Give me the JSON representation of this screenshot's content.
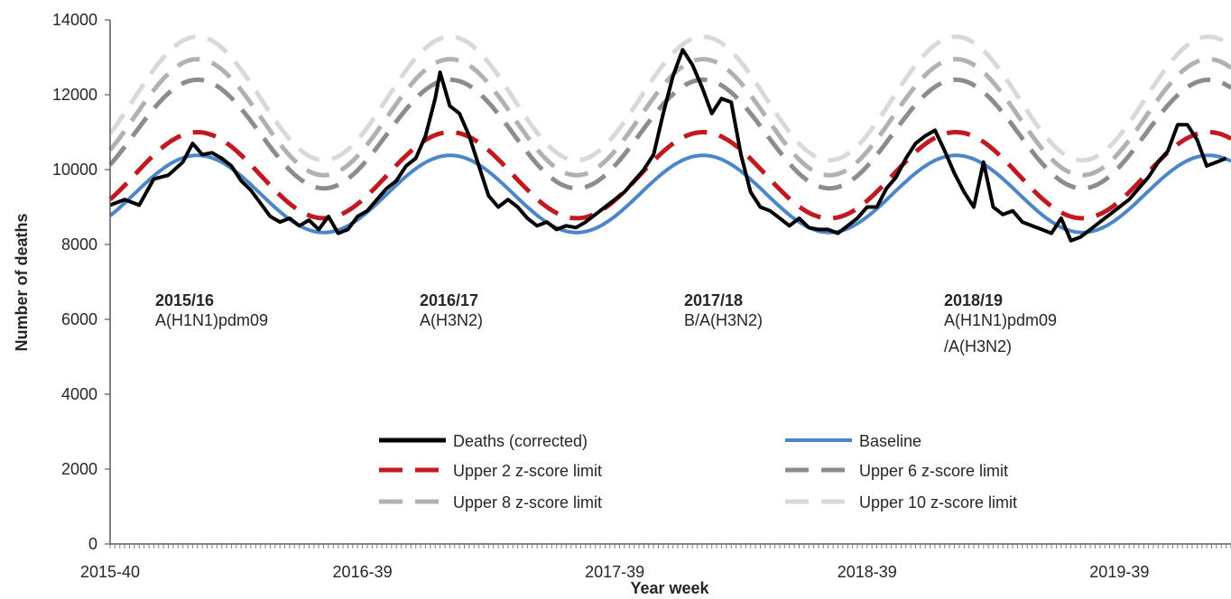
{
  "chart_data": {
    "type": "line",
    "xlabel": "Year week",
    "ylabel": "Number of deaths",
    "ylim": [
      0,
      14000
    ],
    "yticks": [
      0,
      2000,
      4000,
      6000,
      8000,
      10000,
      12000,
      14000
    ],
    "x_range": [
      "2015-40",
      "2020-10"
    ],
    "x_tick_labels": [
      "2015-40",
      "2016-39",
      "2017-39",
      "2018-39",
      "2019-39"
    ],
    "grid": false,
    "legend_position": "bottom-center",
    "seasons": [
      {
        "season": "2015/16",
        "strain": [
          "A(H1N1)pdm09"
        ]
      },
      {
        "season": "2016/17",
        "strain": [
          "A(H3N2)"
        ]
      },
      {
        "season": "2017/18",
        "strain": [
          "B/A(H3N2)"
        ]
      },
      {
        "season": "2018/19",
        "strain": [
          "A(H1N1)pdm09",
          "/A(H3N2)"
        ]
      }
    ],
    "series": [
      {
        "name": "Deaths (corrected)",
        "color": "#000000",
        "points": [
          [
            "2015-40",
            9050
          ],
          [
            "2015-43",
            9200
          ],
          [
            "2015-46",
            9050
          ],
          [
            "2015-49",
            9750
          ],
          [
            "2015-52",
            9850
          ],
          [
            "2016-02",
            10200
          ],
          [
            "2016-04",
            10700
          ],
          [
            "2016-06",
            10400
          ],
          [
            "2016-08",
            10450
          ],
          [
            "2016-10",
            10300
          ],
          [
            "2016-12",
            10100
          ],
          [
            "2016-14",
            9700
          ],
          [
            "2016-16",
            9450
          ],
          [
            "2016-18",
            9100
          ],
          [
            "2016-20",
            8750
          ],
          [
            "2016-22",
            8600
          ],
          [
            "2016-24",
            8700
          ],
          [
            "2016-26",
            8500
          ],
          [
            "2016-28",
            8650
          ],
          [
            "2016-30",
            8400
          ],
          [
            "2016-32",
            8750
          ],
          [
            "2016-34",
            8300
          ],
          [
            "2016-36",
            8400
          ],
          [
            "2016-38",
            8750
          ],
          [
            "2016-40",
            8900
          ],
          [
            "2016-42",
            9200
          ],
          [
            "2016-44",
            9500
          ],
          [
            "2016-46",
            9700
          ],
          [
            "2016-48",
            10100
          ],
          [
            "2016-50",
            10300
          ],
          [
            "2016-52",
            10900
          ],
          [
            "2017-02",
            11900
          ],
          [
            "2017-03",
            12600
          ],
          [
            "2017-05",
            11700
          ],
          [
            "2017-07",
            11500
          ],
          [
            "2017-09",
            10900
          ],
          [
            "2017-11",
            10100
          ],
          [
            "2017-13",
            9300
          ],
          [
            "2017-15",
            9000
          ],
          [
            "2017-17",
            9200
          ],
          [
            "2017-19",
            9000
          ],
          [
            "2017-21",
            8700
          ],
          [
            "2017-23",
            8500
          ],
          [
            "2017-25",
            8600
          ],
          [
            "2017-27",
            8400
          ],
          [
            "2017-29",
            8500
          ],
          [
            "2017-31",
            8450
          ],
          [
            "2017-33",
            8600
          ],
          [
            "2017-35",
            8800
          ],
          [
            "2017-37",
            9000
          ],
          [
            "2017-39",
            9200
          ],
          [
            "2017-41",
            9400
          ],
          [
            "2017-43",
            9700
          ],
          [
            "2017-45",
            10000
          ],
          [
            "2017-47",
            10400
          ],
          [
            "2017-49",
            11500
          ],
          [
            "2017-51",
            12500
          ],
          [
            "2018-01",
            13200
          ],
          [
            "2018-03",
            12800
          ],
          [
            "2018-05",
            12200
          ],
          [
            "2018-07",
            11500
          ],
          [
            "2018-09",
            11900
          ],
          [
            "2018-11",
            11800
          ],
          [
            "2018-13",
            10400
          ],
          [
            "2018-15",
            9400
          ],
          [
            "2018-17",
            9000
          ],
          [
            "2018-19",
            8900
          ],
          [
            "2018-21",
            8700
          ],
          [
            "2018-23",
            8500
          ],
          [
            "2018-25",
            8700
          ],
          [
            "2018-27",
            8450
          ],
          [
            "2018-29",
            8400
          ],
          [
            "2018-31",
            8400
          ],
          [
            "2018-33",
            8300
          ],
          [
            "2018-35",
            8500
          ],
          [
            "2018-37",
            8700
          ],
          [
            "2018-39",
            9000
          ],
          [
            "2018-41",
            9000
          ],
          [
            "2018-43",
            9500
          ],
          [
            "2018-45",
            9800
          ],
          [
            "2018-47",
            10300
          ],
          [
            "2018-49",
            10700
          ],
          [
            "2018-51",
            10900
          ],
          [
            "2019-01",
            11050
          ],
          [
            "2019-03",
            10500
          ],
          [
            "2019-05",
            9900
          ],
          [
            "2019-07",
            9400
          ],
          [
            "2019-09",
            9000
          ],
          [
            "2019-11",
            10200
          ],
          [
            "2019-13",
            9000
          ],
          [
            "2019-15",
            8800
          ],
          [
            "2019-17",
            8900
          ],
          [
            "2019-19",
            8600
          ],
          [
            "2019-21",
            8500
          ],
          [
            "2019-23",
            8400
          ],
          [
            "2019-25",
            8300
          ],
          [
            "2019-27",
            8700
          ],
          [
            "2019-29",
            8100
          ],
          [
            "2019-31",
            8200
          ],
          [
            "2019-33",
            8400
          ],
          [
            "2019-35",
            8600
          ],
          [
            "2019-37",
            8800
          ],
          [
            "2019-39",
            9000
          ],
          [
            "2019-41",
            9200
          ],
          [
            "2019-43",
            9500
          ],
          [
            "2019-45",
            9800
          ],
          [
            "2019-47",
            10200
          ],
          [
            "2019-49",
            10500
          ],
          [
            "2019-51",
            11200
          ],
          [
            "2020-01",
            11200
          ],
          [
            "2020-03",
            10800
          ],
          [
            "2020-05",
            10100
          ],
          [
            "2020-07",
            10200
          ],
          [
            "2020-09",
            10300
          ]
        ]
      },
      {
        "name": "Baseline",
        "color": "#4a86c8",
        "peak_week": "2016-05",
        "period_weeks": 52.1,
        "mean": 9350,
        "amplitude": 1030,
        "approx_values": [
          [
            "2015-40",
            8950
          ],
          [
            "2016-05",
            10380
          ],
          [
            "2016-31",
            8350
          ],
          [
            "2017-05",
            10380
          ],
          [
            "2017-31",
            8350
          ],
          [
            "2018-05",
            10330
          ],
          [
            "2018-31",
            8300
          ],
          [
            "2019-05",
            10300
          ],
          [
            "2019-31",
            8250
          ],
          [
            "2020-10",
            10280
          ]
        ]
      },
      {
        "name": "Upper 2 z-score limit",
        "color": "#c0191f",
        "style": "dashed",
        "mean": 9850,
        "amplitude": 1150,
        "approx_values": [
          [
            "2015-40",
            9300
          ],
          [
            "2016-05",
            10950
          ],
          [
            "2016-31",
            8750
          ],
          [
            "2017-05",
            10950
          ],
          [
            "2018-05",
            10900
          ],
          [
            "2019-05",
            10850
          ],
          [
            "2019-31",
            8700
          ],
          [
            "2020-10",
            10800
          ]
        ]
      },
      {
        "name": "Upper 6 z-score limit",
        "color": "#8c8c8c",
        "style": "dashed",
        "mean": 10950,
        "amplitude": 1450,
        "approx_values": [
          [
            "2015-40",
            10300
          ],
          [
            "2016-05",
            12100
          ],
          [
            "2016-31",
            9600
          ],
          [
            "2017-05",
            12100
          ],
          [
            "2018-05",
            12050
          ],
          [
            "2019-05",
            12000
          ],
          [
            "2020-10",
            12000
          ]
        ]
      },
      {
        "name": "Upper 8 z-score limit",
        "color": "#b1b1b1",
        "style": "dashed",
        "mean": 11400,
        "amplitude": 1550,
        "approx_values": [
          [
            "2015-40",
            10800
          ],
          [
            "2016-05",
            12650
          ],
          [
            "2016-31",
            10100
          ],
          [
            "2017-05",
            12650
          ],
          [
            "2018-05",
            12600
          ],
          [
            "2019-05",
            12550
          ],
          [
            "2020-10",
            12550
          ]
        ]
      },
      {
        "name": "Upper 10 z-score limit",
        "color": "#d9d9d9",
        "style": "dashed",
        "mean": 11900,
        "amplitude": 1650,
        "approx_values": [
          [
            "2015-40",
            11250
          ],
          [
            "2016-05",
            13250
          ],
          [
            "2016-31",
            10600
          ],
          [
            "2017-05",
            13250
          ],
          [
            "2018-05",
            13200
          ],
          [
            "2019-05",
            13150
          ],
          [
            "2020-10",
            13100
          ]
        ]
      }
    ]
  }
}
